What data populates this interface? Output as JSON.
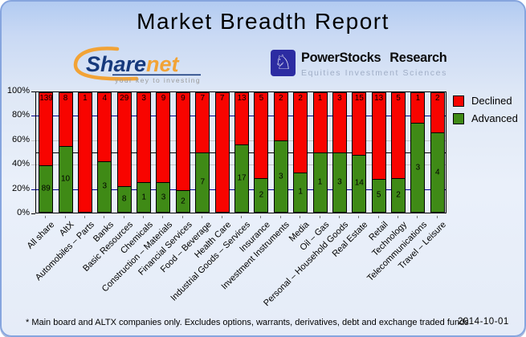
{
  "title": "Market Breadth Report",
  "logos": {
    "sharenet": {
      "brand_primary": "Share",
      "brand_secondary": "net",
      "tagline": "your key to investing",
      "brand_navy": "#16397c",
      "brand_orange": "#f2a336"
    },
    "powerstocks": {
      "name": "PowerStocks Research",
      "subtitle": "Equities Investment Sciences",
      "icon": "chess-knight-icon",
      "square_color": "#2c2ca2"
    }
  },
  "chart_data": {
    "type": "bar",
    "stacked_percent": true,
    "categories": [
      "All share",
      "AltX",
      "Automobiles – Parts",
      "Banks",
      "Basic Resources",
      "Chemicals",
      "Construction – Materials",
      "Financial Services",
      "Food – Beverage",
      "Health Care",
      "Industrial Goods – Services",
      "Insurance",
      "Investment Instruments",
      "Media",
      "Oil – Gas",
      "Personal – Household Goods",
      "Real Estate",
      "Retail",
      "Technology",
      "Telecommunications",
      "Travel – Leisure"
    ],
    "series": [
      {
        "name": "Declined",
        "color": "#f80400",
        "values": [
          139,
          8,
          1,
          4,
          29,
          3,
          9,
          9,
          7,
          7,
          13,
          5,
          2,
          2,
          1,
          3,
          15,
          13,
          5,
          1,
          2
        ]
      },
      {
        "name": "Advanced",
        "color": "#3f8a16",
        "values": [
          89,
          10,
          0,
          3,
          8,
          1,
          3,
          2,
          7,
          0,
          17,
          2,
          3,
          1,
          1,
          3,
          14,
          5,
          2,
          3,
          4
        ]
      }
    ],
    "ylim": [
      0,
      100
    ],
    "y_ticks_pct": [
      0,
      20,
      40,
      60,
      80,
      100
    ],
    "y_tick_suffix": "%",
    "gridlines": [
      {
        "pct": 20,
        "color": "#00008a"
      },
      {
        "pct": 40,
        "color": "#c2c2c2"
      },
      {
        "pct": 50,
        "color": "#000000"
      },
      {
        "pct": 60,
        "color": "#c2c2c2"
      },
      {
        "pct": 80,
        "color": "#00008a"
      }
    ],
    "legend": {
      "position": "top-right",
      "entries": [
        {
          "label": "Declined",
          "color": "#f80400"
        },
        {
          "label": "Advanced",
          "color": "#3f8a16"
        }
      ]
    }
  },
  "footer": {
    "note": "* Main board and ALTX companies only. Excludes options, warrants, derivatives, debt and exchange traded funds",
    "date": "2014-10-01"
  }
}
